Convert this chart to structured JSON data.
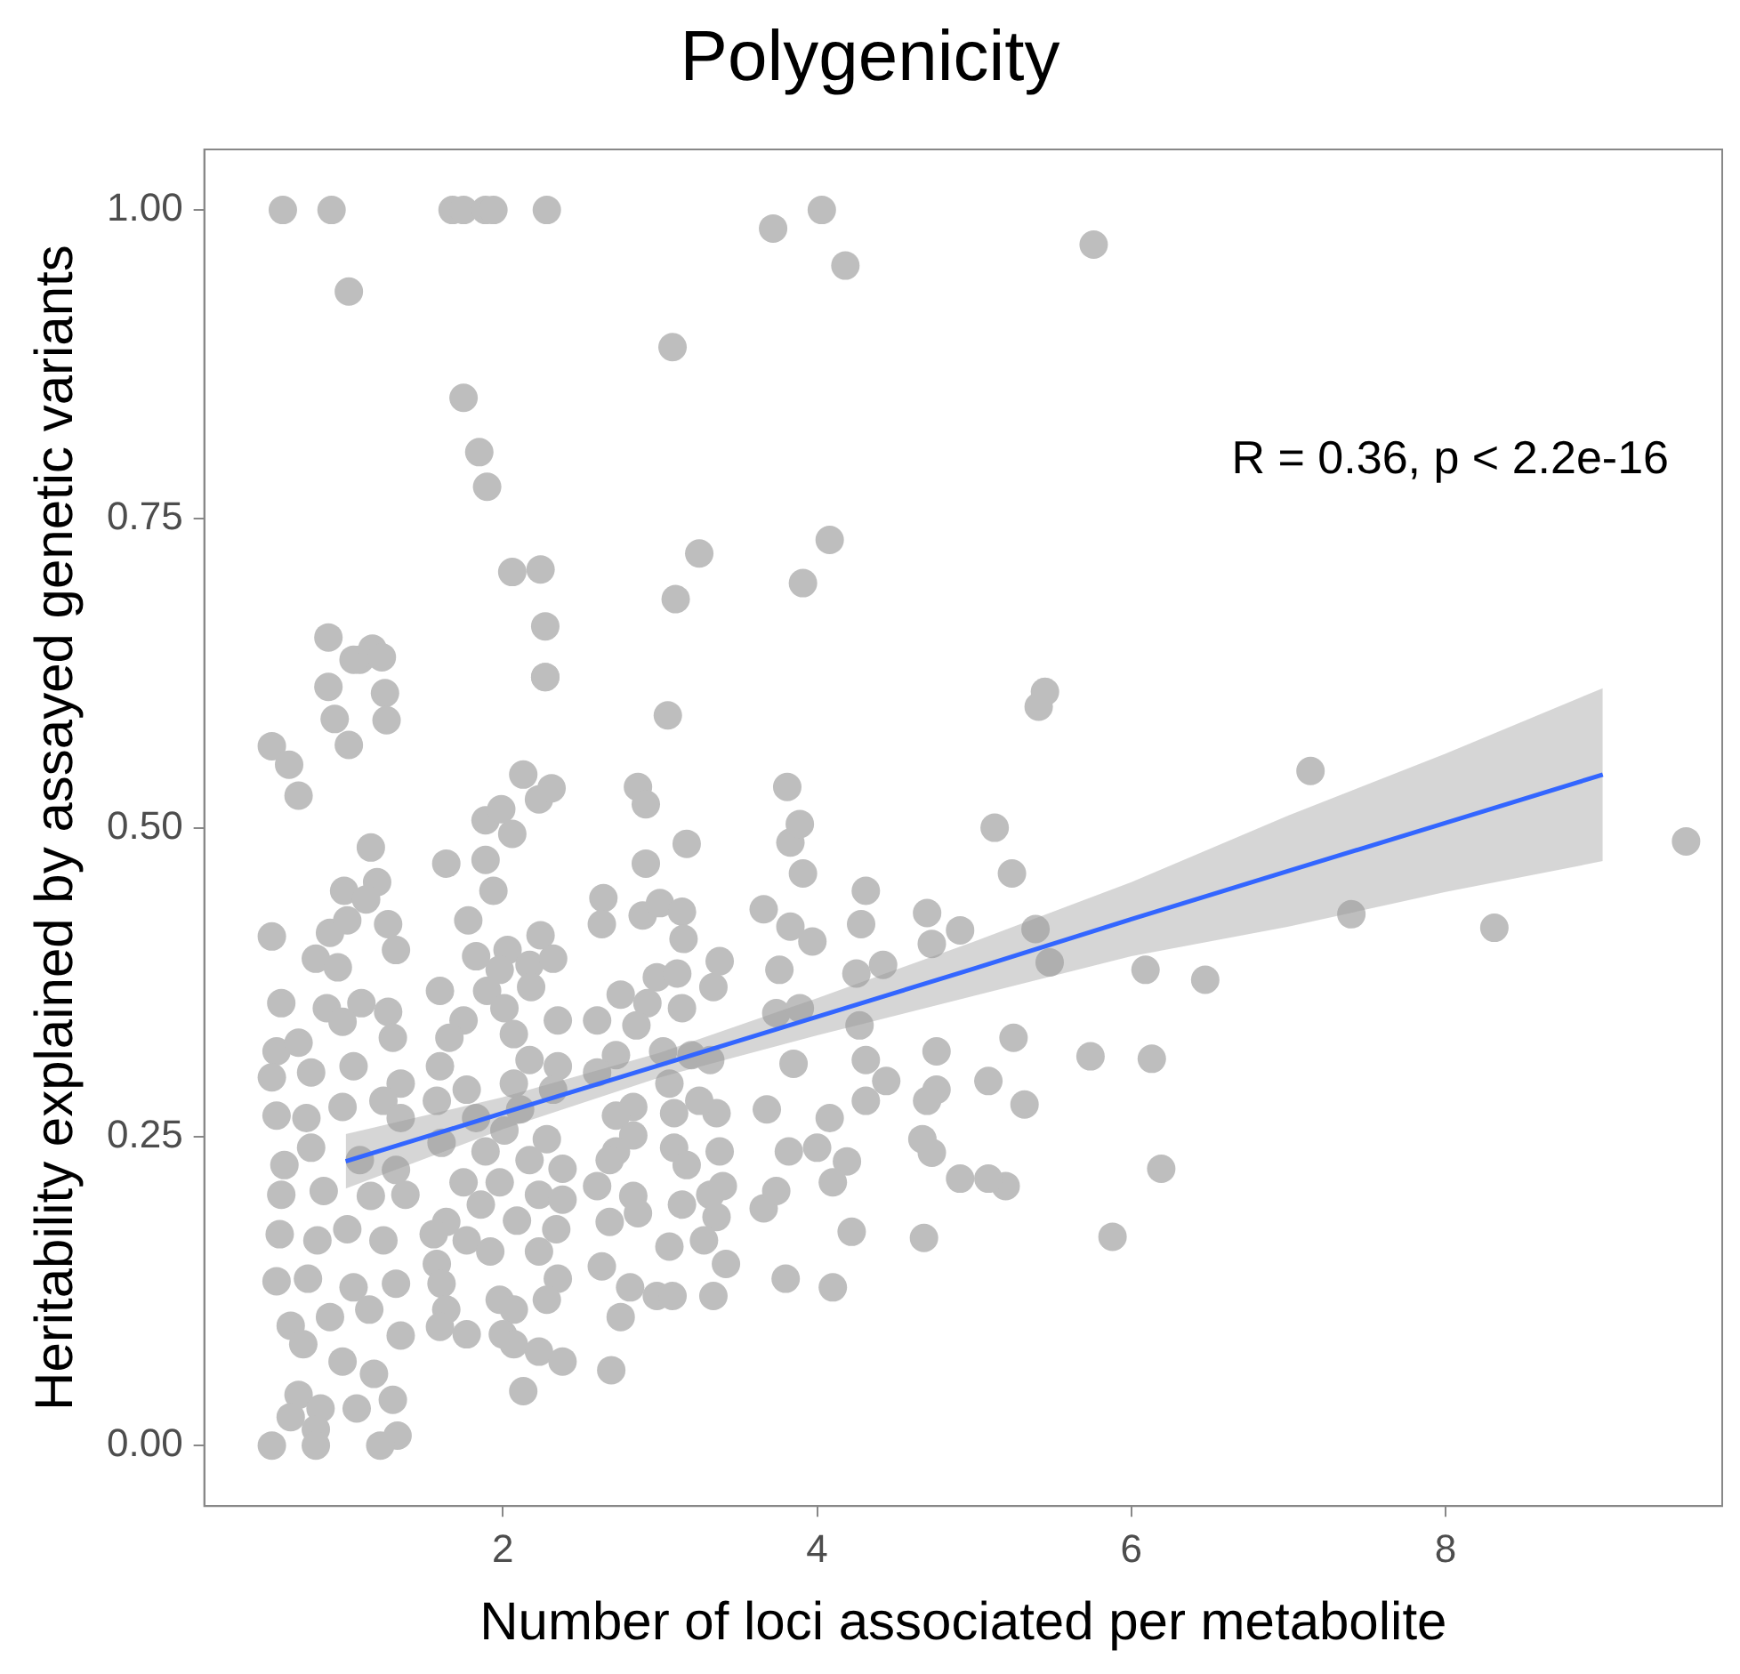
{
  "chart_data": {
    "type": "scatter",
    "title": "Polygenicity",
    "xlabel": "Number of loci associated per metabolite",
    "ylabel": "Heritability explained by assayed genetic variants",
    "annotations": [
      "R = 0.36, p < 2.2e-16"
    ],
    "xlim": [
      0.1,
      9.76
    ],
    "xticks": [
      2,
      4,
      6,
      8
    ],
    "ylim": [
      -0.049,
      1.049
    ],
    "yticks": [
      {
        "value": 0,
        "label": "0.00"
      },
      {
        "value": 0.25,
        "label": "0.25"
      },
      {
        "value": 0.5,
        "label": "0.50"
      },
      {
        "value": 0.75,
        "label": "0.75"
      },
      {
        "value": 1,
        "label": "1.00"
      }
    ],
    "grid": false,
    "legend": false,
    "marker": "circle",
    "series": [
      {
        "color": "#bebebe",
        "x": [
          0.6,
          0.91,
          1.68,
          1.75,
          1.89,
          1.94,
          2.28,
          4.03,
          3.72,
          4.18,
          5.76,
          1.02,
          3.08,
          1.75,
          1.85,
          1.9,
          2.06,
          2.24,
          3.25,
          3.1,
          4.08,
          3.91,
          2.27,
          2.27,
          3.05,
          0.89,
          1.09,
          5.41,
          5.45,
          7.14,
          9.53,
          8.31,
          7.4,
          6.47,
          6.09,
          6.13,
          5.74,
          6.19,
          5.88,
          5.32,
          5.2,
          5.09,
          5.09,
          5.25,
          5.13,
          5.24,
          5.39,
          5.48,
          4.31,
          4.28,
          4.7,
          4.73,
          4.91,
          4.25,
          4.42,
          4.27,
          4.31,
          4.44,
          4.31,
          4.76,
          4.76,
          4.7,
          4.67,
          4.73,
          4.91,
          4.68,
          4.22,
          4.1,
          3.8,
          3.66,
          3.74,
          3.82,
          4.0,
          4.08,
          4.19,
          4.1,
          3.68,
          3.85,
          3.74,
          3.89,
          3.76,
          3.66,
          3.83,
          3.97,
          3.91,
          3.83,
          3.17,
          2.91,
          2.64,
          2.63,
          2.89,
          3.0,
          3.14,
          3.15,
          3.38,
          3.34,
          2.98,
          3.11,
          2.92,
          3.14,
          2.75,
          2.6,
          2.85,
          2.72,
          2.6,
          3.02,
          3.2,
          3.32,
          3.06,
          2.83,
          2.72,
          3.09,
          3.36,
          3.25,
          2.83,
          2.72,
          3.09,
          3.38,
          3.17,
          2.68,
          2.6,
          2.83,
          2.86,
          3.14,
          3.32,
          3.4,
          3.36,
          2.68,
          3.06,
          3.28,
          3.42,
          2.63,
          2.81,
          2.98,
          3.08,
          3.34,
          2.75,
          2.69,
          1.64,
          1.89,
          1.94,
          2.06,
          1.78,
          1.83,
          2.03,
          2.24,
          2.17,
          2.32,
          1.98,
          1.6,
          1.9,
          2.18,
          2.01,
          2.35,
          1.75,
          1.66,
          2.07,
          2.17,
          1.6,
          1.77,
          1.58,
          2.07,
          2.35,
          2.32,
          1.83,
          2.11,
          2.01,
          1.61,
          2.28,
          1.89,
          1.75,
          2.17,
          2.38,
          1.98,
          2.23,
          2.38,
          1.86,
          1.64,
          2.09,
          2.34,
          1.56,
          1.77,
          2.23,
          1.92,
          1.58,
          2.35,
          1.61,
          1.98,
          2.28,
          1.64,
          2.07,
          1.6,
          1.77,
          2.0,
          2.07,
          2.23,
          2.38,
          2.13,
          0.53,
          0.81,
          0.95,
          0.9,
          1.01,
          1.27,
          1.32,
          0.99,
          1.2,
          1.13,
          1.16,
          0.59,
          0.88,
          1.1,
          1.27,
          0.56,
          0.7,
          0.98,
          1.3,
          0.53,
          0.78,
          1.05,
          1.35,
          0.56,
          0.75,
          0.98,
          1.24,
          1.35,
          0.61,
          0.78,
          1.09,
          1.32,
          0.59,
          0.86,
          1.16,
          1.38,
          0.58,
          0.82,
          1.01,
          1.24,
          0.56,
          0.76,
          1.05,
          1.32,
          0.65,
          0.9,
          1.15,
          1.35,
          0.73,
          0.98,
          1.18,
          0.7,
          0.84,
          1.07,
          1.3,
          0.65,
          0.81,
          1.33,
          0.53,
          0.81,
          1.22,
          0.53,
          0.64,
          0.7,
          0.89,
          0.93,
          1.02,
          1.05,
          1.17,
          1.23,
          1.25,
          1.26,
          1.89,
          1.99,
          2.13,
          2.23,
          2.31,
          2.86,
          2.91,
          3.81,
          3.89,
          2.27
        ],
        "values": [
          1.0,
          1.0,
          1.0,
          1.0,
          1.0,
          1.0,
          1.0,
          1.0,
          0.985,
          0.955,
          0.972,
          0.934,
          0.889,
          0.848,
          0.804,
          0.776,
          0.707,
          0.709,
          0.722,
          0.685,
          0.733,
          0.698,
          0.663,
          0.622,
          0.591,
          0.654,
          0.636,
          0.598,
          0.61,
          0.546,
          0.489,
          0.419,
          0.43,
          0.377,
          0.385,
          0.313,
          0.315,
          0.224,
          0.169,
          0.276,
          0.21,
          0.216,
          0.295,
          0.33,
          0.5,
          0.463,
          0.418,
          0.391,
          0.449,
          0.422,
          0.431,
          0.406,
          0.417,
          0.382,
          0.389,
          0.34,
          0.312,
          0.295,
          0.279,
          0.319,
          0.288,
          0.279,
          0.248,
          0.237,
          0.216,
          0.168,
          0.173,
          0.128,
          0.135,
          0.192,
          0.206,
          0.238,
          0.241,
          0.265,
          0.23,
          0.213,
          0.272,
          0.309,
          0.35,
          0.354,
          0.385,
          0.434,
          0.42,
          0.408,
          0.463,
          0.488,
          0.487,
          0.471,
          0.443,
          0.422,
          0.429,
          0.439,
          0.432,
          0.41,
          0.392,
          0.371,
          0.379,
          0.382,
          0.358,
          0.354,
          0.365,
          0.344,
          0.34,
          0.316,
          0.302,
          0.319,
          0.316,
          0.312,
          0.293,
          0.274,
          0.267,
          0.269,
          0.269,
          0.279,
          0.251,
          0.238,
          0.241,
          0.238,
          0.227,
          0.231,
          0.21,
          0.202,
          0.188,
          0.195,
          0.203,
          0.21,
          0.185,
          0.181,
          0.161,
          0.166,
          0.147,
          0.145,
          0.128,
          0.121,
          0.121,
          0.121,
          0.104,
          0.061,
          0.471,
          0.474,
          0.449,
          0.495,
          0.425,
          0.396,
          0.401,
          0.413,
          0.389,
          0.394,
          0.385,
          0.368,
          0.368,
          0.371,
          0.354,
          0.344,
          0.344,
          0.33,
          0.333,
          0.312,
          0.307,
          0.288,
          0.279,
          0.293,
          0.307,
          0.288,
          0.265,
          0.272,
          0.255,
          0.245,
          0.248,
          0.238,
          0.213,
          0.231,
          0.224,
          0.213,
          0.203,
          0.199,
          0.195,
          0.181,
          0.182,
          0.175,
          0.171,
          0.166,
          0.157,
          0.157,
          0.147,
          0.135,
          0.131,
          0.118,
          0.118,
          0.11,
          0.11,
          0.096,
          0.09,
          0.09,
          0.082,
          0.076,
          0.068,
          0.044,
          0.412,
          0.394,
          0.387,
          0.415,
          0.425,
          0.422,
          0.401,
          0.449,
          0.456,
          0.442,
          0.484,
          0.358,
          0.354,
          0.358,
          0.351,
          0.319,
          0.326,
          0.343,
          0.33,
          0.298,
          0.302,
          0.307,
          0.293,
          0.267,
          0.265,
          0.274,
          0.279,
          0.265,
          0.227,
          0.241,
          0.231,
          0.223,
          0.203,
          0.206,
          0.202,
          0.203,
          0.171,
          0.166,
          0.175,
          0.166,
          0.133,
          0.135,
          0.128,
          0.131,
          0.097,
          0.104,
          0.11,
          0.089,
          0.082,
          0.068,
          0.058,
          0.041,
          0.03,
          0.03,
          0.037,
          0.023,
          0.013,
          0.008,
          0.0,
          0.0,
          0.0,
          0.566,
          0.551,
          0.526,
          0.614,
          0.588,
          0.567,
          0.636,
          0.645,
          0.638,
          0.609,
          0.587,
          0.506,
          0.515,
          0.543,
          0.523,
          0.532,
          0.533,
          0.519,
          0.533,
          0.503,
          0.622
        ]
      },
      {
        "type": "line",
        "color": "#3366ff",
        "marker": "none",
        "x": [
          1,
          2,
          3,
          4,
          5,
          6,
          7,
          8,
          9
        ],
        "values": [
          0.23,
          0.269,
          0.308,
          0.347,
          0.386,
          0.426,
          0.465,
          0.504,
          0.543
        ],
        "lower": [
          0.208,
          0.256,
          0.298,
          0.332,
          0.364,
          0.396,
          0.42,
          0.448,
          0.473
        ],
        "upper": [
          0.252,
          0.282,
          0.318,
          0.362,
          0.408,
          0.456,
          0.51,
          0.56,
          0.613
        ]
      }
    ]
  }
}
